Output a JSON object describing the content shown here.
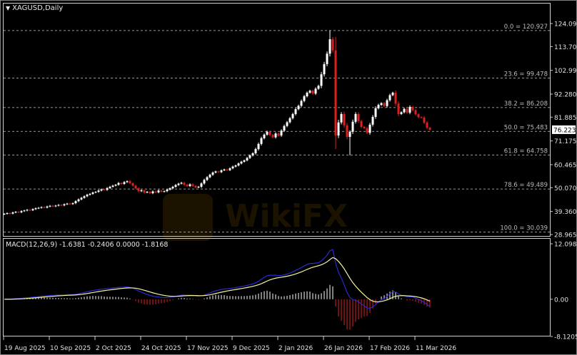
{
  "window": {
    "symbol_timeframe": "XAGUSD,Daily",
    "menu_icon": "triangle-down-icon"
  },
  "colors": {
    "background": "#000000",
    "bull": "#ffffff",
    "bear": "#e02020",
    "macd_line": "#2a2ad0",
    "signal_line": "#f5f5a0",
    "grid": "#c8c8c8"
  },
  "chart_data": [
    {
      "type": "candlestick",
      "title": "XAGUSD,Daily",
      "ylim": [
        28.965,
        124.095
      ],
      "y_ticks": [
        "124.095",
        "113.700",
        "102.990",
        "92.280",
        "81.885",
        "71.175",
        "60.465",
        "50.070",
        "39.360",
        "28.965"
      ],
      "current_price": "76.223",
      "fibonacci": [
        {
          "label": "0.0 = 120.927",
          "value": 120.927
        },
        {
          "label": "23.6 = 99.478",
          "value": 99.478
        },
        {
          "label": "38.2 = 86.208",
          "value": 86.208
        },
        {
          "label": "50.0 = 75.483",
          "value": 75.483
        },
        {
          "label": "61.8 = 64.758",
          "value": 64.758
        },
        {
          "label": "78.6 = 49.489",
          "value": 49.489
        },
        {
          "label": "100.0 = 30.039",
          "value": 30.039
        }
      ],
      "x_ticks": [
        "19 Aug 2025",
        "10 Sep 2025",
        "2 Oct 2025",
        "24 Oct 2025",
        "17 Nov 2025",
        "9 Dec 2025",
        "2 Jan 2026",
        "26 Jan 2026",
        "17 Feb 2026",
        "11 Mar 2026"
      ],
      "closes": [
        38.3,
        38.6,
        38.4,
        38.9,
        39.2,
        39.0,
        39.5,
        39.8,
        40.1,
        39.9,
        40.4,
        40.8,
        41.0,
        41.3,
        41.1,
        41.6,
        41.9,
        41.7,
        42.0,
        42.3,
        42.1,
        42.6,
        42.9,
        42.7,
        43.1,
        44.0,
        44.8,
        45.5,
        46.2,
        46.9,
        47.3,
        47.9,
        48.2,
        48.8,
        49.3,
        49.1,
        49.9,
        50.5,
        51.0,
        51.4,
        52.2,
        51.8,
        52.6,
        53.0,
        52.1,
        51.0,
        49.8,
        48.5,
        48.9,
        47.9,
        48.2,
        47.6,
        48.4,
        48.0,
        48.8,
        48.3,
        48.5,
        49.2,
        49.8,
        50.5,
        51.3,
        51.9,
        52.3,
        51.4,
        50.8,
        51.6,
        50.9,
        50.2,
        50.5,
        52.0,
        53.6,
        54.8,
        55.9,
        56.9,
        57.4,
        57.1,
        57.9,
        58.3,
        58.0,
        58.8,
        59.6,
        60.1,
        61.0,
        61.8,
        62.4,
        63.5,
        64.6,
        65.6,
        67.5,
        69.8,
        72.4,
        74.0,
        75.3,
        73.9,
        72.8,
        74.5,
        73.6,
        75.8,
        77.9,
        79.6,
        81.4,
        83.3,
        85.5,
        87.0,
        89.2,
        91.3,
        92.9,
        93.8,
        92.5,
        94.7,
        96.0,
        101.2,
        105.8,
        110.5,
        117.0,
        112.0,
        73.6,
        79.5,
        83.3,
        78.2,
        73.0,
        75.3,
        79.8,
        83.3,
        80.1,
        77.5,
        76.9,
        74.8,
        78.5,
        82.0,
        85.9,
        87.4,
        88.2,
        86.9,
        89.5,
        91.8,
        92.9,
        88.0,
        83.3,
        84.1,
        85.6,
        83.9,
        86.5,
        85.0,
        83.2,
        81.9,
        81.7,
        79.4,
        77.1,
        76.2
      ]
    },
    {
      "type": "macd",
      "label": "MACD(12,26,9) -1.6381 -0.2406 0.0000 -1.8168",
      "ylim": [
        -8.1205,
        12.0983
      ],
      "y_ticks": [
        "12.0983",
        "0.00",
        "-8.1205"
      ]
    }
  ]
}
